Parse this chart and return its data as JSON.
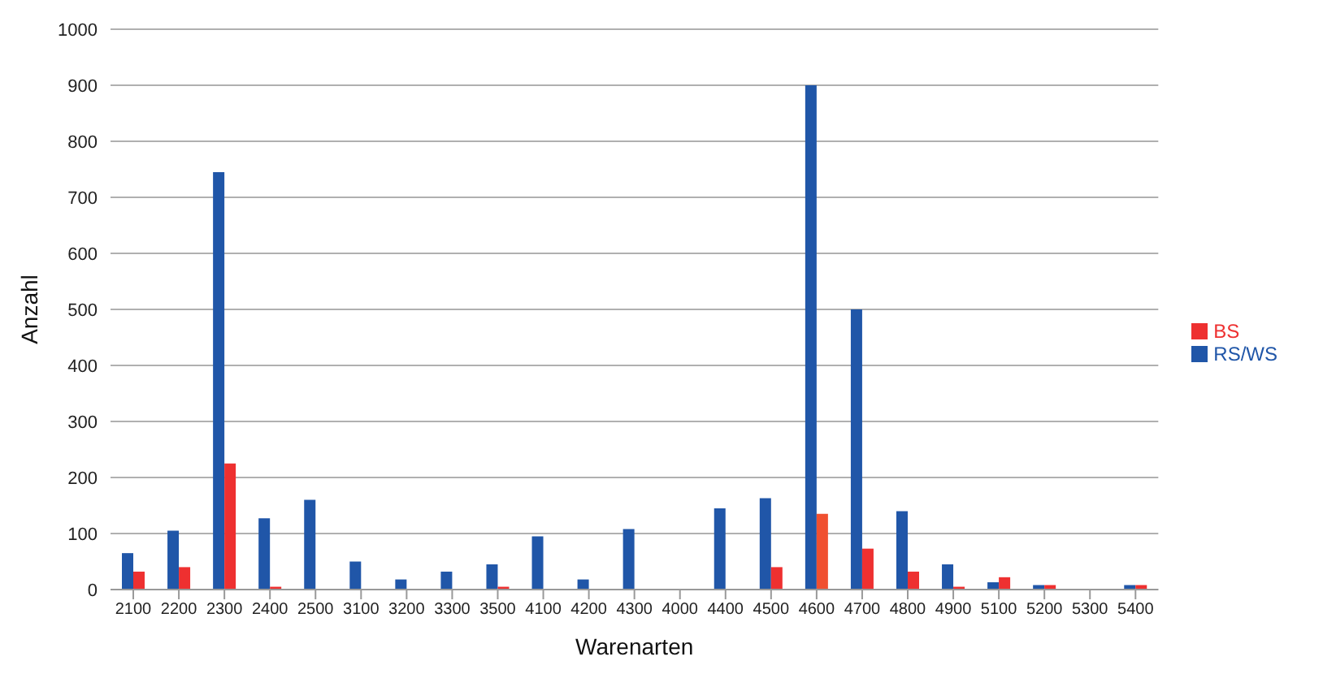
{
  "chart_data": {
    "type": "bar",
    "xlabel": "Warenarten",
    "ylabel": "Anzahl",
    "categories": [
      "2100",
      "2200",
      "2300",
      "2400",
      "2500",
      "3100",
      "3200",
      "3300",
      "3500",
      "4100",
      "4200",
      "4300",
      "4000",
      "4400",
      "4500",
      "4600",
      "4700",
      "4800",
      "4900",
      "5100",
      "5200",
      "5300",
      "5400"
    ],
    "series": [
      {
        "name": "RS/WS",
        "color": "#2056a8",
        "values": [
          65,
          105,
          745,
          127,
          160,
          50,
          18,
          32,
          45,
          95,
          18,
          108,
          0,
          145,
          163,
          900,
          500,
          140,
          45,
          13,
          8,
          0,
          8
        ]
      },
      {
        "name": "BS",
        "color": "#ee3030",
        "colors": [
          "#ee3030",
          "#ee3030",
          "#ee3030",
          "#ee3030",
          "#ee3030",
          "#ee3030",
          "#ee3030",
          "#ee3030",
          "#ee3030",
          "#ee3030",
          "#ee3030",
          "#ee3030",
          "#ee3030",
          "#ee3030",
          "#ee3030",
          "#f05030",
          "#ee3030",
          "#ee3030",
          "#ee3030",
          "#ee3030",
          "#ee3030",
          "#ee3030",
          "#ee3030"
        ],
        "values": [
          32,
          40,
          225,
          5,
          0,
          0,
          0,
          0,
          5,
          0,
          0,
          0,
          0,
          0,
          40,
          135,
          73,
          32,
          5,
          22,
          8,
          0,
          8
        ]
      }
    ],
    "ylim": [
      0,
      1000
    ],
    "yticks": [
      0,
      100,
      200,
      300,
      400,
      500,
      600,
      700,
      800,
      900,
      1000
    ],
    "grid": "y",
    "legend": "right"
  }
}
